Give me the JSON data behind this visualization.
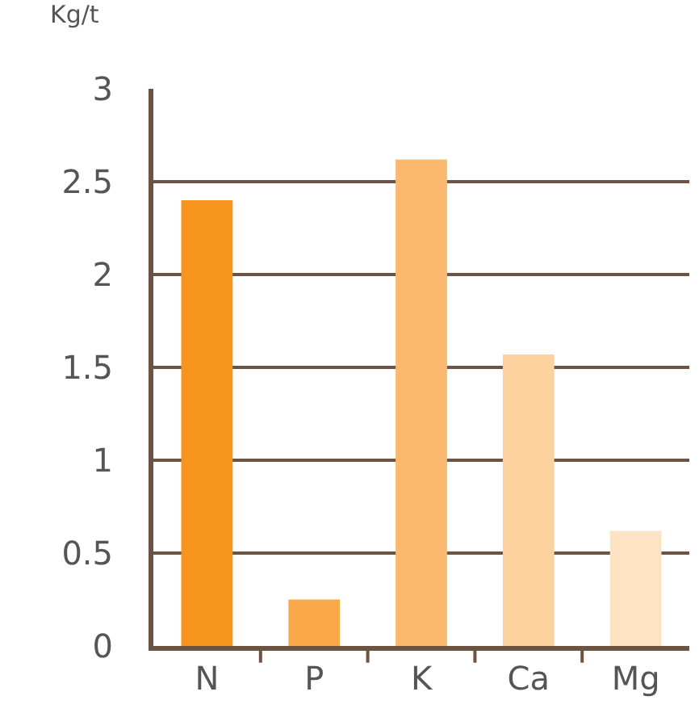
{
  "chart_data": {
    "type": "bar",
    "ylabel": "Kg/t",
    "categories": [
      "N",
      "P",
      "K",
      "Ca",
      "Mg"
    ],
    "values": [
      2.4,
      0.25,
      2.62,
      1.57,
      0.62
    ],
    "colors": [
      "#f7941d",
      "#f9a84a",
      "#fbb970",
      "#fdd29e",
      "#fee3c4"
    ],
    "ylim": [
      0,
      3
    ],
    "yticks": [
      0,
      0.5,
      1,
      1.5,
      2,
      2.5,
      3
    ],
    "grid": "y"
  }
}
